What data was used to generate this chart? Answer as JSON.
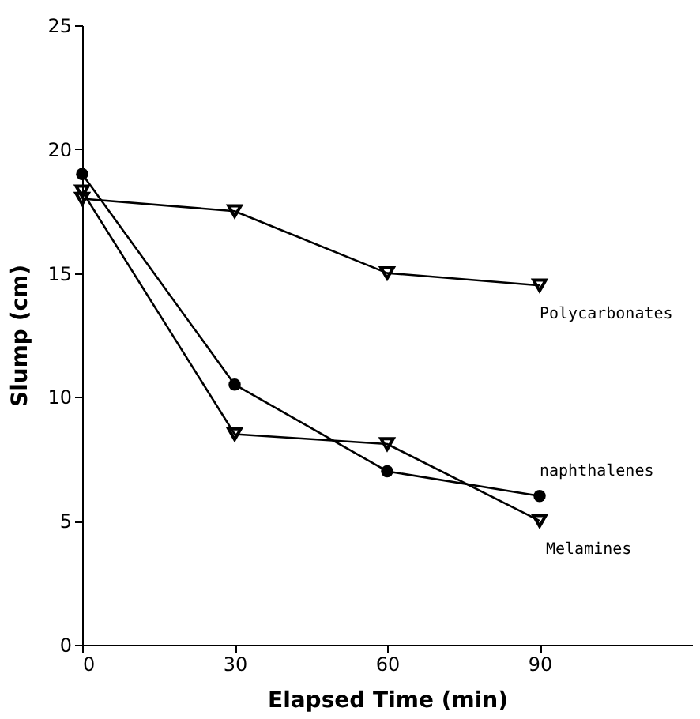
{
  "chart_data": {
    "type": "line",
    "xlabel": "Elapsed Time (min)",
    "ylabel": "Slump (cm)",
    "x": [
      0,
      30,
      60,
      90
    ],
    "series": [
      {
        "name": "Polycarbonates",
        "color": "#000000",
        "marker": "triangle",
        "values": [
          18,
          17.5,
          15,
          14.5
        ]
      },
      {
        "name": "naphthalenes",
        "color": "#000000",
        "marker": "circle",
        "values": [
          19,
          10.5,
          7,
          6
        ]
      },
      {
        "name": "Melamines",
        "color": "#000000",
        "marker": "triangle",
        "values": [
          18.3,
          8.5,
          8.1,
          5
        ]
      }
    ],
    "xlim": [
      0,
      120
    ],
    "xticks": [
      0,
      30,
      60,
      90
    ],
    "ylim": [
      0,
      25
    ],
    "yticks": [
      0,
      5,
      10,
      15,
      20,
      25
    ],
    "grid": false,
    "legend": false,
    "line_style": "solid"
  }
}
